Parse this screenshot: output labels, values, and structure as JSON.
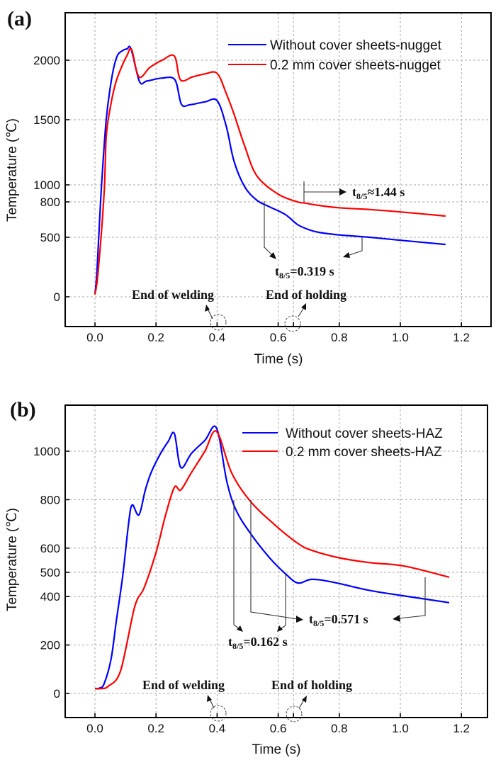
{
  "chart_data": [
    {
      "type": "line",
      "panel_label": "(a)",
      "xlabel": "Time (s)",
      "ylabel": "Temperature (℃)",
      "xlim": [
        -0.1,
        1.3
      ],
      "x_ticks": [
        "0.0",
        "0.2",
        "0.4",
        "0.6",
        "0.8",
        "1.0",
        "1.2"
      ],
      "x_tick_values": [
        0.0,
        0.2,
        0.4,
        0.6,
        0.8,
        1.0,
        1.2
      ],
      "y_ticks": [
        "0",
        "500",
        "800",
        "1000",
        "1500",
        "2000"
      ],
      "y_tick_values": [
        0,
        500,
        800,
        1000,
        1500,
        2000
      ],
      "grid": true,
      "legend_position": "top-right",
      "series": [
        {
          "name": "Without cover sheets-nugget",
          "color": "#0000ff",
          "x": [
            0.0,
            0.007,
            0.02,
            0.037,
            0.055,
            0.072,
            0.09,
            0.105,
            0.118,
            0.146,
            0.17,
            0.22,
            0.262,
            0.283,
            0.31,
            0.36,
            0.4,
            0.43,
            0.455,
            0.49,
            0.53,
            0.57,
            0.624,
            0.663,
            0.7,
            0.733,
            0.8,
            0.9,
            1.0,
            1.148
          ],
          "y": [
            20,
            230,
            900,
            1500,
            1850,
            2030,
            2080,
            2095,
            2095,
            1820,
            1825,
            1850,
            1835,
            1630,
            1625,
            1650,
            1660,
            1450,
            1185,
            980,
            820,
            760,
            692,
            608,
            565,
            542,
            520,
            500,
            475,
            440
          ]
        },
        {
          "name": "0.2 mm cover sheets-nugget",
          "color": "#ff0000",
          "x": [
            0.0,
            0.01,
            0.03,
            0.037,
            0.05,
            0.068,
            0.09,
            0.105,
            0.12,
            0.144,
            0.18,
            0.22,
            0.26,
            0.28,
            0.32,
            0.36,
            0.4,
            0.43,
            0.455,
            0.49,
            0.53,
            0.6,
            0.663,
            0.687,
            0.733,
            0.8,
            0.9,
            1.0,
            1.148
          ],
          "y": [
            20,
            200,
            900,
            1370,
            1600,
            1810,
            1960,
            2040,
            2090,
            1860,
            1940,
            2000,
            2035,
            1835,
            1860,
            1885,
            1890,
            1720,
            1550,
            1300,
            1070,
            890,
            800,
            790,
            770,
            750,
            735,
            715,
            680
          ]
        }
      ],
      "annotations": {
        "t85_red": "t",
        "t85_red_sub": "8/5",
        "t85_red_value": "≈1.44 s",
        "t85_blue": "t",
        "t85_blue_sub": "8/5",
        "t85_blue_value": "=0.319 s",
        "end_welding": "End of welding",
        "end_holding": "End of holding"
      }
    },
    {
      "type": "line",
      "panel_label": "(b)",
      "xlabel": "Time (s)",
      "ylabel": "Temperature (℃)",
      "xlim": [
        -0.1,
        1.3
      ],
      "x_ticks": [
        "0.0",
        "0.2",
        "0.4",
        "0.6",
        "0.8",
        "1.0",
        "1.2"
      ],
      "x_tick_values": [
        0.0,
        0.2,
        0.4,
        0.6,
        0.8,
        1.0,
        1.2
      ],
      "y_ticks": [
        "0",
        "200",
        "400",
        "500",
        "600",
        "800",
        "1000"
      ],
      "y_tick_values": [
        0,
        200,
        400,
        500,
        600,
        800,
        1000
      ],
      "grid": true,
      "legend_position": "top-right",
      "series": [
        {
          "name": "Without cover sheets-HAZ",
          "color": "#0000ff",
          "x": [
            0.0,
            0.015,
            0.03,
            0.053,
            0.07,
            0.091,
            0.11,
            0.122,
            0.144,
            0.165,
            0.184,
            0.215,
            0.24,
            0.26,
            0.281,
            0.316,
            0.36,
            0.398,
            0.432,
            0.462,
            0.509,
            0.571,
            0.624,
            0.664,
            0.71,
            0.777,
            0.9,
            1.0,
            1.16
          ],
          "y": [
            20,
            22,
            40,
            143,
            300,
            485,
            700,
            778,
            737,
            840,
            912,
            991,
            1040,
            1073,
            933,
            991,
            1045,
            1096,
            874,
            757,
            661,
            561,
            494,
            456,
            471,
            460,
            425,
            405,
            375
          ],
          "x_tick_gap": 0
        },
        {
          "name": "0.2 mm cover sheets-HAZ",
          "color": "#ff0000",
          "x": [
            0.0,
            0.02,
            0.044,
            0.084,
            0.13,
            0.161,
            0.2,
            0.23,
            0.26,
            0.281,
            0.316,
            0.36,
            0.398,
            0.447,
            0.508,
            0.586,
            0.664,
            0.71,
            0.8,
            0.9,
            1.012,
            1.16
          ],
          "y": [
            20,
            20,
            30,
            94,
            357,
            436,
            582,
            730,
            851,
            840,
            912,
            1000,
            1082,
            912,
            795,
            699,
            620,
            591,
            560,
            540,
            526,
            480
          ]
        }
      ],
      "annotations": {
        "t85_red": "t",
        "t85_red_sub": "8/5",
        "t85_red_value": "=0.571 s",
        "t85_blue": "t",
        "t85_blue_sub": "8/5",
        "t85_blue_value": "=0.162 s",
        "end_welding": "End of welding",
        "end_holding": "End of holding"
      }
    }
  ]
}
